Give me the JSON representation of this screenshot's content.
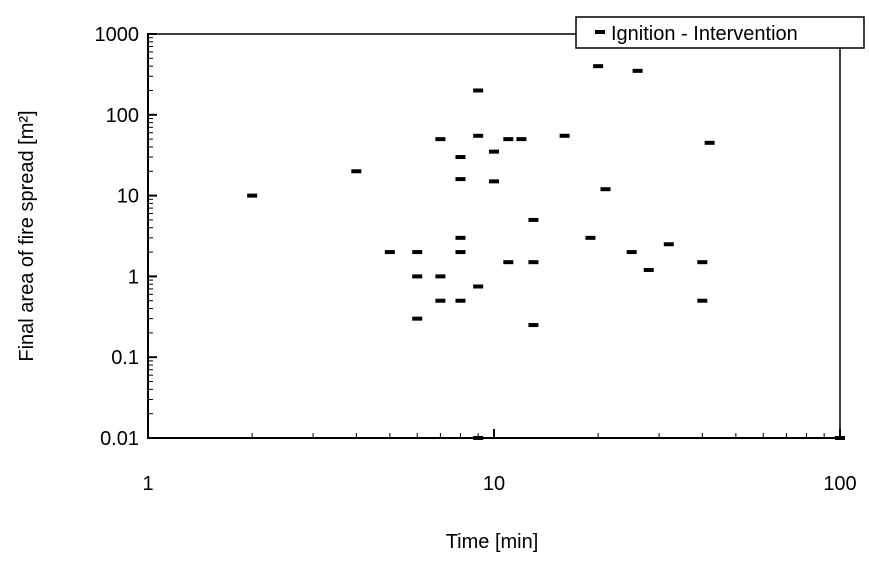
{
  "chart_data": {
    "type": "scatter",
    "title": "",
    "xlabel": "Time [min]",
    "ylabel": "Final area of fire spread [m²]",
    "x_scale": "log",
    "y_scale": "log",
    "xlim": [
      1,
      100
    ],
    "ylim": [
      0.01,
      1000
    ],
    "x_ticks": [
      1,
      10,
      100
    ],
    "x_tick_labels": [
      "1",
      "10",
      "100"
    ],
    "y_ticks": [
      0.01,
      0.1,
      1,
      10,
      100,
      1000
    ],
    "y_tick_labels": [
      "0.01",
      "0.1",
      "1",
      "10",
      "100",
      "1000"
    ],
    "grid": false,
    "legend_position": "top-right",
    "marker": "dash",
    "color": "#000000",
    "series": [
      {
        "name": "Ignition - Intervention",
        "points": [
          [
            2,
            10
          ],
          [
            4,
            20
          ],
          [
            5,
            2
          ],
          [
            6,
            2
          ],
          [
            6,
            1
          ],
          [
            6,
            0.3
          ],
          [
            7,
            50
          ],
          [
            7,
            1
          ],
          [
            7,
            0.5
          ],
          [
            8,
            30
          ],
          [
            8,
            16
          ],
          [
            8,
            3
          ],
          [
            8,
            2
          ],
          [
            8,
            0.5
          ],
          [
            9,
            200
          ],
          [
            9,
            55
          ],
          [
            9,
            0.75
          ],
          [
            9,
            0.01
          ],
          [
            10,
            35
          ],
          [
            10,
            15
          ],
          [
            11,
            50
          ],
          [
            11,
            1.5
          ],
          [
            12,
            50
          ],
          [
            13,
            5
          ],
          [
            13,
            1.5
          ],
          [
            13,
            0.25
          ],
          [
            16,
            55
          ],
          [
            19,
            3
          ],
          [
            20,
            400
          ],
          [
            21,
            12
          ],
          [
            25,
            2
          ],
          [
            26,
            350
          ],
          [
            28,
            1.2
          ],
          [
            32,
            2.5
          ],
          [
            40,
            1.5
          ],
          [
            40,
            0.5
          ],
          [
            42,
            45
          ],
          [
            100,
            0.01
          ]
        ]
      }
    ]
  }
}
